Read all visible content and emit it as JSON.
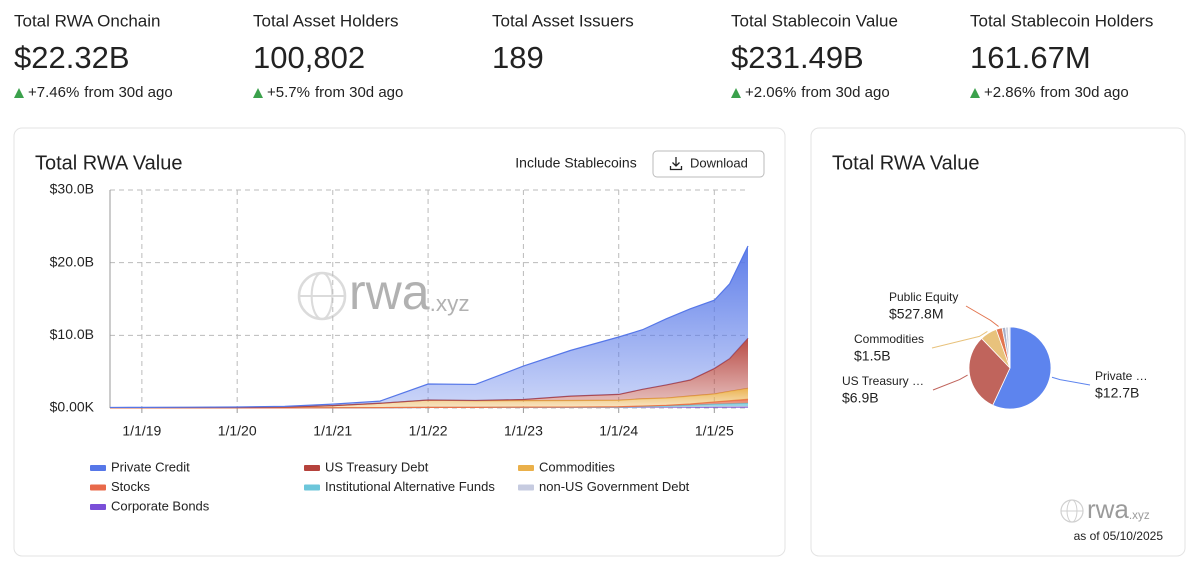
{
  "stats": [
    {
      "label": "Total RWA Onchain",
      "value": "$22.32B",
      "change": "+7.46%",
      "period": "from 30d ago"
    },
    {
      "label": "Total Asset Holders",
      "value": "100,802",
      "change": "+5.7%",
      "period": "from 30d ago"
    },
    {
      "label": "Total Asset Issuers",
      "value": "189"
    },
    {
      "label": "Total Stablecoin Value",
      "value": "$231.49B",
      "change": "+2.06%",
      "period": "from 30d ago"
    },
    {
      "label": "Total Stablecoin Holders",
      "value": "161.67M",
      "change": "+2.86%",
      "period": "from 30d ago"
    }
  ],
  "controls": {
    "toggle": "Include Stablecoins",
    "download": "Download"
  },
  "watermark": {
    "name": "rwa",
    "domain": ".xyz"
  },
  "footnote": "as of 05/10/2025",
  "chart_data": [
    {
      "type": "stacked_area",
      "title": "Total RWA Value",
      "x": [
        "9/1/18",
        "1/1/19",
        "7/1/19",
        "1/1/20",
        "7/1/20",
        "1/1/21",
        "7/1/21",
        "1/1/22",
        "7/1/22",
        "1/1/23",
        "7/1/23",
        "1/1/24",
        "4/1/24",
        "7/1/24",
        "10/1/24",
        "1/1/25",
        "3/1/25",
        "5/10/25"
      ],
      "xlim": [
        "9/1/18",
        "5/10/25"
      ],
      "xticks": [
        "1/1/19",
        "1/1/20",
        "1/1/21",
        "1/1/22",
        "1/1/23",
        "1/1/24",
        "1/1/25"
      ],
      "ylim": [
        0,
        30
      ],
      "yticks": [
        {
          "value": 0,
          "label": "$0.00K"
        },
        {
          "value": 10,
          "label": "$10.0B"
        },
        {
          "value": 20,
          "label": "$20.0B"
        },
        {
          "value": 30,
          "label": "$30.0B"
        }
      ],
      "grid": true,
      "series": [
        {
          "name": "Private Credit",
          "color": "#5677e8",
          "values": [
            0.02,
            0.03,
            0.05,
            0.08,
            0.1,
            0.2,
            0.3,
            2.2,
            2.2,
            4.6,
            6.3,
            7.9,
            8.2,
            9.1,
            9.8,
            9.4,
            10.3,
            12.7
          ]
        },
        {
          "name": "US Treasury Debt",
          "color": "#b5423c",
          "values": [
            0,
            0,
            0,
            0,
            0,
            0,
            0,
            0.01,
            0.05,
            0.15,
            0.6,
            0.8,
            1.3,
            1.8,
            2.2,
            3.5,
            4.5,
            6.9
          ]
        },
        {
          "name": "Commodities",
          "color": "#eab04a",
          "values": [
            0.05,
            0.05,
            0.05,
            0.05,
            0.1,
            0.3,
            0.6,
            1.0,
            0.9,
            0.9,
            0.9,
            0.9,
            1.0,
            1.0,
            1.1,
            1.1,
            1.3,
            1.5
          ]
        },
        {
          "name": "Stocks",
          "color": "#e8694a",
          "values": [
            0,
            0,
            0,
            0,
            0,
            0,
            0,
            0.01,
            0.01,
            0.02,
            0.03,
            0.05,
            0.07,
            0.1,
            0.15,
            0.3,
            0.4,
            0.53
          ]
        },
        {
          "name": "Institutional Alternative Funds",
          "color": "#6cc6da",
          "values": [
            0,
            0,
            0,
            0,
            0,
            0,
            0,
            0,
            0,
            0,
            0,
            0,
            0.05,
            0.1,
            0.2,
            0.3,
            0.35,
            0.4
          ]
        },
        {
          "name": "non-US Government Debt",
          "color": "#c6cbe0",
          "values": [
            0,
            0,
            0,
            0,
            0,
            0,
            0,
            0,
            0,
            0,
            0,
            0.02,
            0.03,
            0.05,
            0.06,
            0.08,
            0.09,
            0.1
          ]
        },
        {
          "name": "Corporate Bonds",
          "color": "#7a4fd8",
          "values": [
            0.01,
            0.01,
            0.01,
            0.01,
            0.02,
            0.03,
            0.05,
            0.08,
            0.08,
            0.1,
            0.1,
            0.1,
            0.12,
            0.12,
            0.14,
            0.15,
            0.16,
            0.17
          ]
        }
      ]
    },
    {
      "type": "pie",
      "title": "Total RWA Value",
      "categories": [
        "Private …",
        "US Treasury …",
        "Commodities",
        "Public Equity",
        null,
        null,
        null
      ],
      "values": [
        12.7,
        6.9,
        1.5,
        0.5278,
        0.3,
        0.25,
        0.14
      ],
      "value_labels": [
        "$12.7B",
        "$6.9B",
        "$1.5B",
        "$527.8M",
        null,
        null,
        null
      ],
      "colors": [
        "#5d84ee",
        "#c0645c",
        "#e8c27c",
        "#e2744f",
        "#a8b0c8",
        "#cfd3e0",
        "#e3e3ea"
      ]
    }
  ]
}
